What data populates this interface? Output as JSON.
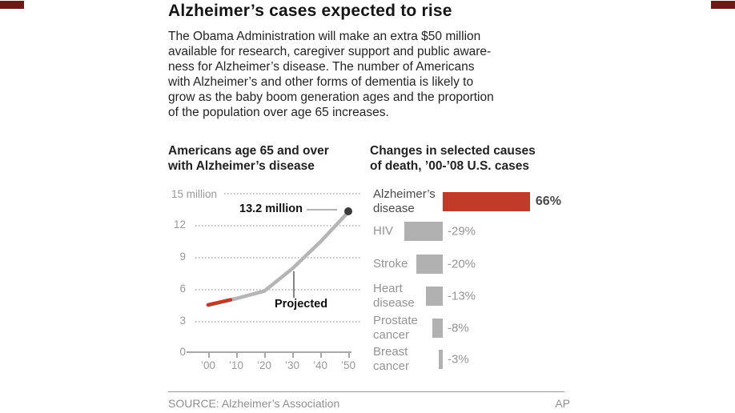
{
  "colors": {
    "red": "#c23a28",
    "corner_dark_red": "#6d1a15",
    "gray_bar": "#b1b1b1",
    "gray_line": "#b5b5b5"
  },
  "header": {
    "title": "Alzheimer’s cases expected to rise",
    "intro_lines": [
      "The Obama Administration will make an extra $50 million",
      "available for research, caregiver support and public aware-",
      "ness for Alzheimer’s disease. The number of Americans",
      "with Alzheimer’s and other forms of dementia is likely to",
      "grow as the baby boom generation ages and the proportion",
      "of the population over age 65 increases."
    ]
  },
  "line_chart": {
    "subtitle": "Americans age 65 and over\nwith Alzheimer’s disease",
    "y_top_label": "15 million",
    "y_labels": [
      "12",
      "9",
      "6",
      "3",
      "0"
    ],
    "x_labels": [
      "’00",
      "’10",
      "’20",
      "’30",
      "’40",
      "’50"
    ],
    "endpoint_annotation": "13.2 million",
    "projected_label": "Projected"
  },
  "bar_chart": {
    "subtitle": "Changes in selected causes\nof death, ’00-’08 U.S. cases",
    "rows": [
      {
        "label": "Alzheimer’s\ndisease",
        "value": 66,
        "value_label": "66%"
      },
      {
        "label": "HIV",
        "value": -29,
        "value_label": "-29%"
      },
      {
        "label": "Stroke",
        "value": -20,
        "value_label": "-20%"
      },
      {
        "label": "Heart\ndisease",
        "value": -13,
        "value_label": "-13%"
      },
      {
        "label": "Prostate\ncancer",
        "value": -8,
        "value_label": "-8%"
      },
      {
        "label": "Breast\ncancer",
        "value": -3,
        "value_label": "-3%"
      }
    ]
  },
  "footer": {
    "source": "SOURCE: Alzheimer’s Association",
    "credit": "AP"
  },
  "chart_data": [
    {
      "type": "line",
      "title": "Americans age 65 and over with Alzheimer’s disease",
      "x_years": [
        2000,
        2010,
        2020,
        2030,
        2040,
        2050
      ],
      "x_tick_labels": [
        "’00",
        "’10",
        "’20",
        "’30",
        "’40",
        "’50"
      ],
      "values_million": [
        4.5,
        5.1,
        5.8,
        7.9,
        10.4,
        13.2
      ],
      "ylim": [
        0,
        15
      ],
      "y_tick_labels": [
        "0",
        "3",
        "6",
        "9",
        "12",
        "15 million"
      ],
      "grid": "dotted-horizontal",
      "annotations": [
        "13.2 million",
        "Projected"
      ],
      "actual_segment_end_year": 2008,
      "actual_segment_color": "#c23a28",
      "projected_segment_color": "#b5b5b5"
    },
    {
      "type": "bar",
      "orientation": "horizontal",
      "title": "Changes in selected causes of death, ’00-’08 U.S. cases",
      "categories": [
        "Alzheimer’s disease",
        "HIV",
        "Stroke",
        "Heart disease",
        "Prostate cancer",
        "Breast cancer"
      ],
      "values_pct": [
        66,
        -29,
        -20,
        -13,
        -8,
        -3
      ],
      "positive_color": "#c23a28",
      "negative_color": "#b1b1b1"
    }
  ]
}
